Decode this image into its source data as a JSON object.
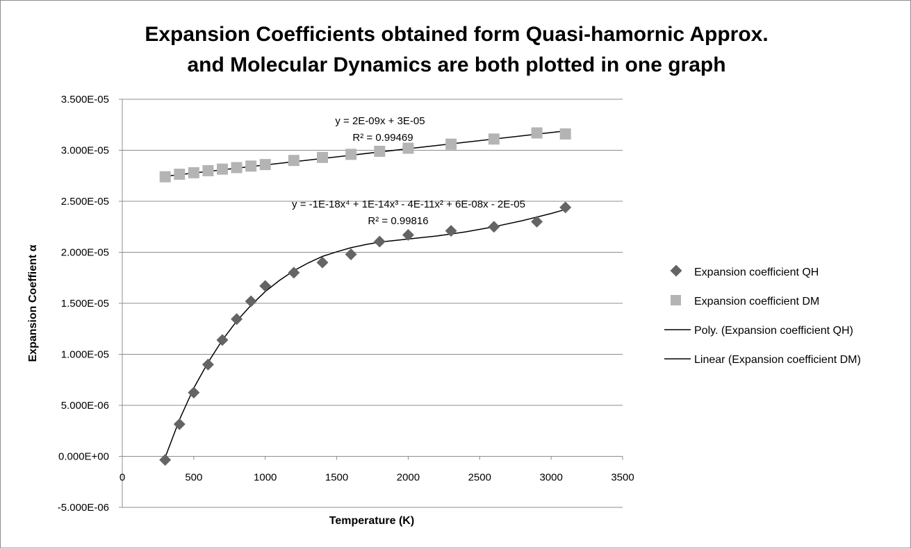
{
  "chart_data": {
    "type": "scatter",
    "title_lines": [
      "Expansion Coefficients obtained form Quasi-hamornic Approx.",
      "and Molecular Dynamics are both plotted in one graph"
    ],
    "xlabel": "Temperature (K)",
    "ylabel": "Expansion Coeffient α",
    "xlim": [
      0,
      3500
    ],
    "ylim": [
      -5e-06,
      3.5e-05
    ],
    "x_ticks": [
      0,
      500,
      1000,
      1500,
      2000,
      2500,
      3000,
      3500
    ],
    "x_tick_labels": [
      "0",
      "500",
      "1000",
      "1500",
      "2000",
      "2500",
      "3000",
      "3500"
    ],
    "y_ticks": [
      -5e-06,
      0,
      5e-06,
      1e-05,
      1.5e-05,
      2e-05,
      2.5e-05,
      3e-05,
      3.5e-05
    ],
    "y_tick_labels": [
      "-5.000E-06",
      "0.000E+00",
      "5.000E-06",
      "1.000E-05",
      "1.500E-05",
      "2.000E-05",
      "2.500E-05",
      "3.000E-05",
      "3.500E-05"
    ],
    "grid": true,
    "legend_position": "right",
    "series": [
      {
        "name": "Expansion coefficient QH",
        "marker": "diamond",
        "color": "#646464",
        "x": [
          300,
          400,
          500,
          600,
          700,
          800,
          900,
          1000,
          1200,
          1400,
          1600,
          1800,
          2000,
          2300,
          2600,
          2900,
          3100
        ],
        "y": [
          -3.5e-07,
          3.15e-06,
          6.25e-06,
          9e-06,
          1.14e-05,
          1.345e-05,
          1.52e-05,
          1.67e-05,
          1.8e-05,
          1.9e-05,
          1.98e-05,
          2.105e-05,
          2.17e-05,
          2.21e-05,
          2.25e-05,
          2.3e-05,
          2.44e-05
        ]
      },
      {
        "name": "Expansion coefficient DM",
        "marker": "square",
        "color": "#b4b4b4",
        "x": [
          300,
          400,
          500,
          600,
          700,
          800,
          900,
          1000,
          1200,
          1400,
          1600,
          1800,
          2000,
          2300,
          2600,
          2900,
          3100
        ],
        "y": [
          2.74e-05,
          2.765e-05,
          2.78e-05,
          2.8e-05,
          2.815e-05,
          2.83e-05,
          2.845e-05,
          2.86e-05,
          2.9e-05,
          2.93e-05,
          2.96e-05,
          2.99e-05,
          3.02e-05,
          3.06e-05,
          3.11e-05,
          3.17e-05,
          3.16e-05
        ]
      }
    ],
    "trendlines": [
      {
        "name": "Poly. (Expansion coefficient QH)",
        "type": "polynomial",
        "order": 4,
        "color": "#000000",
        "equation": "y = -1E-18x⁴ + 1E-14x³ - 4E-11x² + 6E-08x - 2E-05",
        "r_squared": "R² = 0.99816",
        "curve_x": [
          300,
          400,
          500,
          600,
          700,
          800,
          900,
          1000,
          1100,
          1200,
          1300,
          1400,
          1500,
          1600,
          1700,
          1800,
          1900,
          2000,
          2200,
          2400,
          2600,
          2800,
          3000,
          3100
        ],
        "curve_y": [
          -1e-07,
          3.6e-06,
          6.7e-06,
          9.2e-06,
          1.14e-05,
          1.325e-05,
          1.48e-05,
          1.615e-05,
          1.725e-05,
          1.82e-05,
          1.895e-05,
          1.96e-05,
          2.005e-05,
          2.045e-05,
          2.075e-05,
          2.1e-05,
          2.115e-05,
          2.13e-05,
          2.16e-05,
          2.2e-05,
          2.25e-05,
          2.31e-05,
          2.38e-05,
          2.42e-05
        ]
      },
      {
        "name": "Linear (Expansion coefficient DM)",
        "type": "linear",
        "color": "#000000",
        "equation": "y = 2E-09x + 3E-05",
        "r_squared": "R² = 0.99469",
        "curve_x": [
          300,
          3100
        ],
        "curve_y": [
          2.745e-05,
          3.19e-05
        ]
      }
    ]
  }
}
